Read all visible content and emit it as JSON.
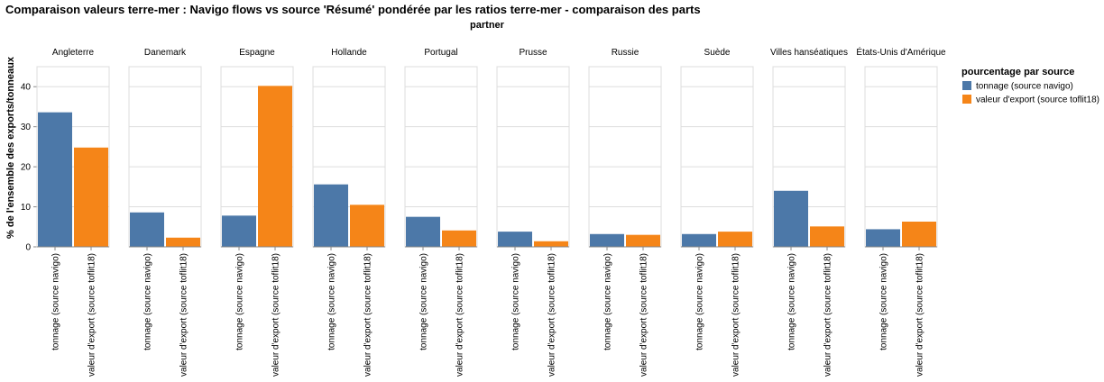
{
  "chart_data": {
    "type": "bar",
    "title": "Comparaison valeurs terre-mer : Navigo flows vs source 'Résumé' pondérée par les ratios terre-mer - comparaison des parts",
    "column_header": "partner",
    "ylabel": "% de l'ensemble des exports/tonneaux",
    "ylim": [
      0,
      45
    ],
    "yticks": [
      0,
      10,
      20,
      30,
      40
    ],
    "grid": true,
    "legend_position": "right",
    "legend_title": "pourcentage par source",
    "categories": [
      "tonnage (source navigo)",
      "valeur d'export (source toflit18)"
    ],
    "colors": [
      "#4c78a8",
      "#f58518"
    ],
    "facets": [
      {
        "name": "Angleterre",
        "values": [
          33.6,
          24.8
        ]
      },
      {
        "name": "Danemark",
        "values": [
          8.6,
          2.3
        ]
      },
      {
        "name": "Espagne",
        "values": [
          7.8,
          40.2
        ]
      },
      {
        "name": "Hollande",
        "values": [
          15.6,
          10.5
        ]
      },
      {
        "name": "Portugal",
        "values": [
          7.5,
          4.1
        ]
      },
      {
        "name": "Prusse",
        "values": [
          3.8,
          1.4
        ]
      },
      {
        "name": "Russie",
        "values": [
          3.2,
          3.0
        ]
      },
      {
        "name": "Suède",
        "values": [
          3.2,
          3.8
        ]
      },
      {
        "name": "Villes hanséatiques",
        "values": [
          14.0,
          5.1
        ]
      },
      {
        "name": "États-Unis d'Amérique",
        "values": [
          4.4,
          6.3
        ]
      }
    ]
  }
}
